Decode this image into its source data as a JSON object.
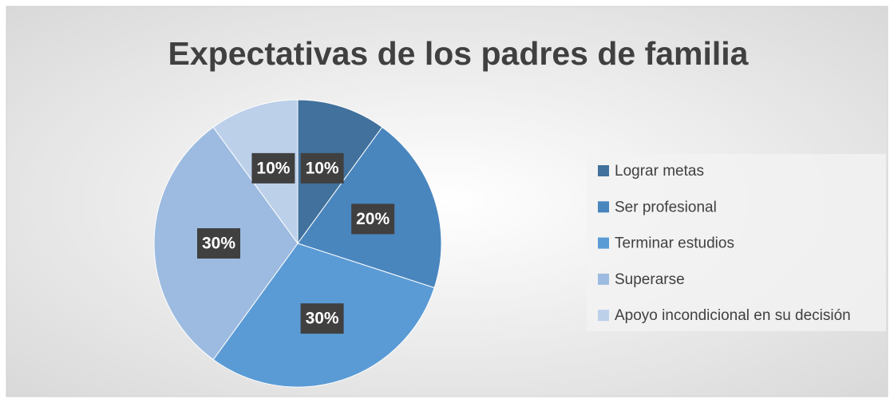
{
  "chart_data": {
    "type": "pie",
    "title": "Expectativas de los padres de familia",
    "categories": [
      "Lograr metas",
      "Ser profesional",
      "Terminar estudios",
      "Superarse",
      "Apoyo incondicional en su decisión"
    ],
    "values": [
      10,
      20,
      30,
      30,
      10
    ],
    "value_labels": [
      "10%",
      "20%",
      "30%",
      "30%",
      "10%"
    ],
    "colors": [
      "#41719c",
      "#4a86be",
      "#5b9bd5",
      "#9dbbe0",
      "#bdd0ea"
    ],
    "legend": "right"
  }
}
